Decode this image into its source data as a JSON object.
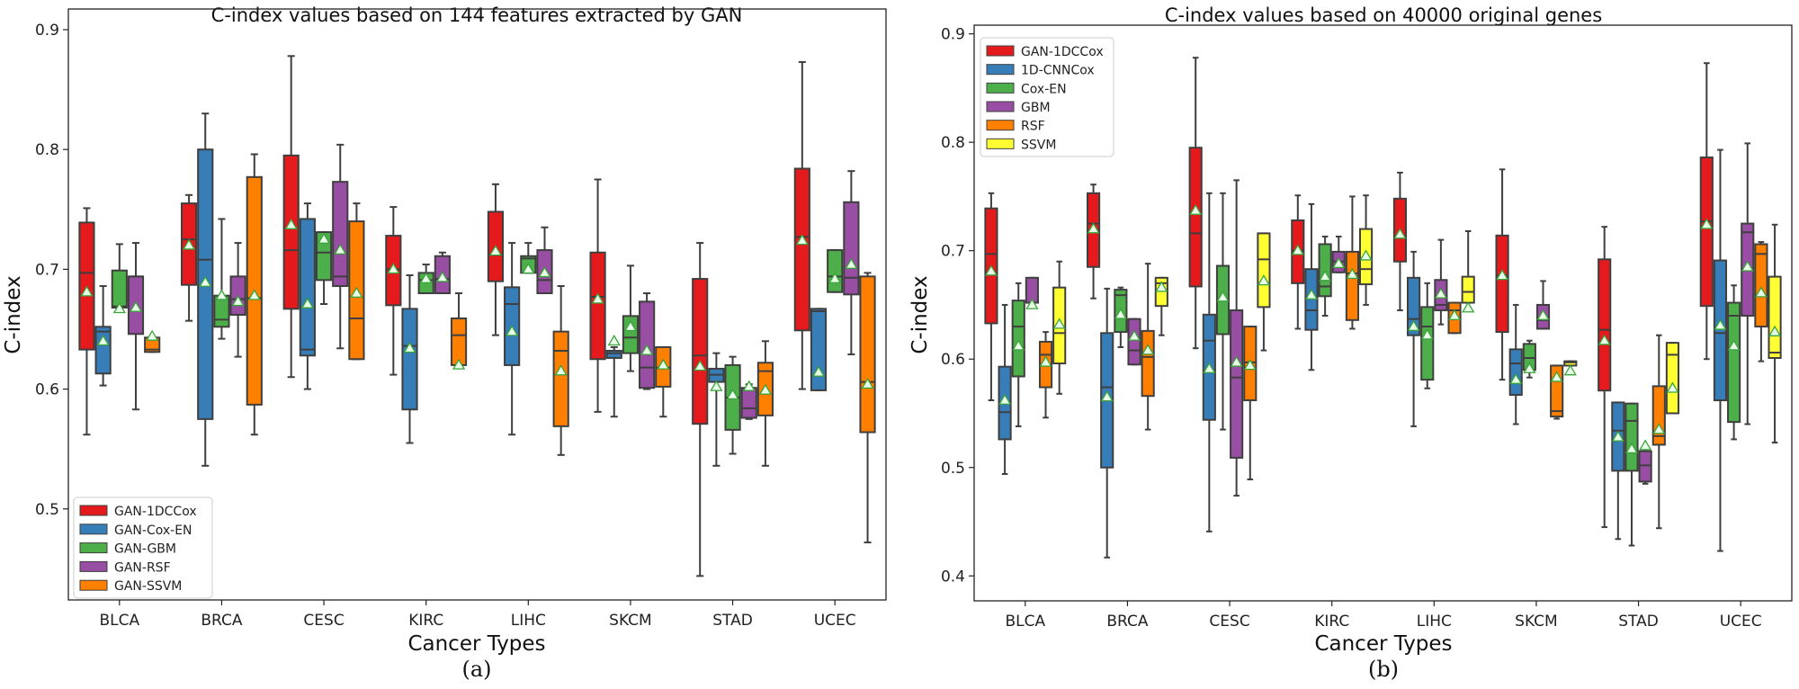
{
  "chart_data": [
    {
      "type": "box",
      "title": "C-index values based on 144 features extracted by GAN",
      "xlabel": "Cancer Types",
      "ylabel": "C-index",
      "caption": "(a)",
      "ylim": [
        0.424,
        0.9
      ],
      "yticks": [
        0.5,
        0.6,
        0.7,
        0.8,
        0.9
      ],
      "ytick_labels": [
        "0.5",
        "0.6",
        "0.7",
        "0.8",
        "0.9"
      ],
      "categories": [
        "BLCA",
        "BRCA",
        "CESC",
        "KIRC",
        "LIHC",
        "SKCM",
        "STAD",
        "UCEC"
      ],
      "legend_position": "lower-left",
      "series": [
        {
          "name": "GAN-1DCCox",
          "color": "#e41a1c",
          "boxes": [
            {
              "wl": 0.562,
              "q1": 0.633,
              "med": 0.697,
              "q3": 0.739,
              "wh": 0.751,
              "mean": 0.681
            },
            {
              "wl": 0.657,
              "q1": 0.687,
              "med": 0.725,
              "q3": 0.755,
              "wh": 0.762,
              "mean": 0.72
            },
            {
              "wl": 0.61,
              "q1": 0.667,
              "med": 0.716,
              "q3": 0.795,
              "wh": 0.878,
              "mean": 0.737
            },
            {
              "wl": 0.612,
              "q1": 0.67,
              "med": 0.7,
              "q3": 0.728,
              "wh": 0.752,
              "mean": 0.7
            },
            {
              "wl": 0.645,
              "q1": 0.69,
              "med": 0.712,
              "q3": 0.748,
              "wh": 0.771,
              "mean": 0.715
            },
            {
              "wl": 0.581,
              "q1": 0.625,
              "med": 0.677,
              "q3": 0.714,
              "wh": 0.775,
              "mean": 0.675
            },
            {
              "wl": 0.444,
              "q1": 0.571,
              "med": 0.628,
              "q3": 0.692,
              "wh": 0.722,
              "mean": 0.619
            },
            {
              "wl": 0.6,
              "q1": 0.649,
              "med": 0.727,
              "q3": 0.784,
              "wh": 0.873,
              "mean": 0.724
            }
          ]
        },
        {
          "name": "GAN-Cox-EN",
          "color": "#377eb8",
          "boxes": [
            {
              "wl": 0.603,
              "q1": 0.613,
              "med": 0.648,
              "q3": 0.652,
              "wh": 0.686,
              "mean": 0.64
            },
            {
              "wl": 0.536,
              "q1": 0.575,
              "med": 0.708,
              "q3": 0.8,
              "wh": 0.83,
              "mean": 0.689
            },
            {
              "wl": 0.6,
              "q1": 0.628,
              "med": 0.633,
              "q3": 0.742,
              "wh": 0.755,
              "mean": 0.671
            },
            {
              "wl": 0.555,
              "q1": 0.583,
              "med": 0.636,
              "q3": 0.667,
              "wh": 0.695,
              "mean": 0.634
            },
            {
              "wl": 0.562,
              "q1": 0.62,
              "med": 0.671,
              "q3": 0.685,
              "wh": 0.722,
              "mean": 0.648
            },
            {
              "wl": 0.577,
              "q1": 0.626,
              "med": 0.63,
              "q3": 0.632,
              "wh": 0.635,
              "mean": 0.64
            },
            {
              "wl": 0.536,
              "q1": 0.606,
              "med": 0.612,
              "q3": 0.617,
              "wh": 0.63,
              "mean": 0.602
            },
            {
              "wl": 0.599,
              "q1": 0.599,
              "med": 0.665,
              "q3": 0.667,
              "wh": 0.667,
              "mean": 0.614
            }
          ]
        },
        {
          "name": "GAN-GBM",
          "color": "#4daf4a",
          "boxes": [
            {
              "wl": 0.668,
              "q1": 0.668,
              "med": 0.669,
              "q3": 0.699,
              "wh": 0.721,
              "mean": 0.667
            },
            {
              "wl": 0.642,
              "q1": 0.652,
              "med": 0.658,
              "q3": 0.678,
              "wh": 0.742,
              "mean": 0.678
            },
            {
              "wl": 0.671,
              "q1": 0.691,
              "med": 0.714,
              "q3": 0.731,
              "wh": 0.731,
              "mean": 0.725
            },
            {
              "wl": 0.68,
              "q1": 0.68,
              "med": 0.691,
              "q3": 0.697,
              "wh": 0.704,
              "mean": 0.692
            },
            {
              "wl": 0.697,
              "q1": 0.697,
              "med": 0.709,
              "q3": 0.711,
              "wh": 0.722,
              "mean": 0.7
            },
            {
              "wl": 0.615,
              "q1": 0.63,
              "med": 0.643,
              "q3": 0.661,
              "wh": 0.703,
              "mean": 0.652
            },
            {
              "wl": 0.546,
              "q1": 0.566,
              "med": 0.593,
              "q3": 0.62,
              "wh": 0.627,
              "mean": 0.595
            },
            {
              "wl": 0.681,
              "q1": 0.681,
              "med": 0.694,
              "q3": 0.716,
              "wh": 0.716,
              "mean": 0.692
            }
          ]
        },
        {
          "name": "GAN-RSF",
          "color": "#984ea3",
          "boxes": [
            {
              "wl": 0.583,
              "q1": 0.646,
              "med": 0.694,
              "q3": 0.694,
              "wh": 0.722,
              "mean": 0.668
            },
            {
              "wl": 0.627,
              "q1": 0.662,
              "med": 0.675,
              "q3": 0.694,
              "wh": 0.722,
              "mean": 0.673
            },
            {
              "wl": 0.634,
              "q1": 0.686,
              "med": 0.694,
              "q3": 0.773,
              "wh": 0.804,
              "mean": 0.716
            },
            {
              "wl": 0.68,
              "q1": 0.68,
              "med": 0.692,
              "q3": 0.711,
              "wh": 0.714,
              "mean": 0.693
            },
            {
              "wl": 0.68,
              "q1": 0.68,
              "med": 0.691,
              "q3": 0.716,
              "wh": 0.735,
              "mean": 0.697
            },
            {
              "wl": 0.6,
              "q1": 0.601,
              "med": 0.618,
              "q3": 0.673,
              "wh": 0.68,
              "mean": 0.632
            },
            {
              "wl": 0.575,
              "q1": 0.576,
              "med": 0.584,
              "q3": 0.601,
              "wh": 0.604,
              "mean": 0.602
            },
            {
              "wl": 0.629,
              "q1": 0.679,
              "med": 0.693,
              "q3": 0.756,
              "wh": 0.782,
              "mean": 0.704
            }
          ]
        },
        {
          "name": "GAN-SSVM",
          "color": "#ff7f00",
          "boxes": [
            {
              "wl": 0.631,
              "q1": 0.631,
              "med": 0.633,
              "q3": 0.643,
              "wh": 0.643,
              "mean": 0.644
            },
            {
              "wl": 0.562,
              "q1": 0.587,
              "med": 0.676,
              "q3": 0.777,
              "wh": 0.796,
              "mean": 0.678
            },
            {
              "wl": 0.625,
              "q1": 0.625,
              "med": 0.659,
              "q3": 0.74,
              "wh": 0.755,
              "mean": 0.68
            },
            {
              "wl": 0.62,
              "q1": 0.62,
              "med": 0.645,
              "q3": 0.659,
              "wh": 0.68,
              "mean": 0.62
            },
            {
              "wl": 0.545,
              "q1": 0.569,
              "med": 0.632,
              "q3": 0.648,
              "wh": 0.686,
              "mean": 0.615
            },
            {
              "wl": 0.577,
              "q1": 0.602,
              "med": 0.618,
              "q3": 0.635,
              "wh": 0.635,
              "mean": 0.62
            },
            {
              "wl": 0.536,
              "q1": 0.578,
              "med": 0.615,
              "q3": 0.622,
              "wh": 0.64,
              "mean": 0.599
            },
            {
              "wl": 0.472,
              "q1": 0.564,
              "med": 0.606,
              "q3": 0.694,
              "wh": 0.697,
              "mean": 0.604
            }
          ]
        }
      ]
    },
    {
      "type": "box",
      "title": "C-index values based on 40000 original genes",
      "xlabel": "Cancer Types",
      "ylabel": "C-index",
      "caption": "(b)",
      "ylim": [
        0.377,
        0.908
      ],
      "yticks": [
        0.4,
        0.5,
        0.6,
        0.7,
        0.8,
        0.9
      ],
      "ytick_labels": [
        "0.4",
        "0.5",
        "0.6",
        "0.7",
        "0.8",
        "0.9"
      ],
      "categories": [
        "BLCA",
        "BRCA",
        "CESC",
        "KIRC",
        "LIHC",
        "SKCM",
        "STAD",
        "UCEC"
      ],
      "legend_position": "upper-left",
      "series": [
        {
          "name": "GAN-1DCCox",
          "color": "#e41a1c",
          "boxes": [
            {
              "wl": 0.562,
              "q1": 0.633,
              "med": 0.697,
              "q3": 0.739,
              "wh": 0.753,
              "mean": 0.681
            },
            {
              "wl": 0.656,
              "q1": 0.685,
              "med": 0.725,
              "q3": 0.753,
              "wh": 0.761,
              "mean": 0.72
            },
            {
              "wl": 0.61,
              "q1": 0.667,
              "med": 0.716,
              "q3": 0.795,
              "wh": 0.878,
              "mean": 0.737
            },
            {
              "wl": 0.628,
              "q1": 0.67,
              "med": 0.7,
              "q3": 0.728,
              "wh": 0.751,
              "mean": 0.7
            },
            {
              "wl": 0.645,
              "q1": 0.69,
              "med": 0.712,
              "q3": 0.748,
              "wh": 0.772,
              "mean": 0.715
            },
            {
              "wl": 0.581,
              "q1": 0.625,
              "med": 0.677,
              "q3": 0.714,
              "wh": 0.775,
              "mean": 0.677
            },
            {
              "wl": 0.445,
              "q1": 0.571,
              "med": 0.627,
              "q3": 0.692,
              "wh": 0.722,
              "mean": 0.617
            },
            {
              "wl": 0.6,
              "q1": 0.649,
              "med": 0.727,
              "q3": 0.786,
              "wh": 0.873,
              "mean": 0.724
            }
          ]
        },
        {
          "name": "1D-CNNCox",
          "color": "#377eb8",
          "boxes": [
            {
              "wl": 0.494,
              "q1": 0.526,
              "med": 0.551,
              "q3": 0.593,
              "wh": 0.65,
              "mean": 0.562
            },
            {
              "wl": 0.417,
              "q1": 0.5,
              "med": 0.574,
              "q3": 0.624,
              "wh": 0.665,
              "mean": 0.565
            },
            {
              "wl": 0.441,
              "q1": 0.544,
              "med": 0.617,
              "q3": 0.641,
              "wh": 0.753,
              "mean": 0.591
            },
            {
              "wl": 0.59,
              "q1": 0.627,
              "med": 0.645,
              "q3": 0.683,
              "wh": 0.743,
              "mean": 0.659
            },
            {
              "wl": 0.538,
              "q1": 0.622,
              "med": 0.637,
              "q3": 0.675,
              "wh": 0.699,
              "mean": 0.63
            },
            {
              "wl": 0.54,
              "q1": 0.567,
              "med": 0.596,
              "q3": 0.609,
              "wh": 0.65,
              "mean": 0.581
            },
            {
              "wl": 0.434,
              "q1": 0.497,
              "med": 0.534,
              "q3": 0.56,
              "wh": 0.56,
              "mean": 0.528
            },
            {
              "wl": 0.423,
              "q1": 0.562,
              "med": 0.624,
              "q3": 0.691,
              "wh": 0.793,
              "mean": 0.631
            }
          ]
        },
        {
          "name": "Cox-EN",
          "color": "#4daf4a",
          "boxes": [
            {
              "wl": 0.538,
              "q1": 0.584,
              "med": 0.63,
              "q3": 0.654,
              "wh": 0.67,
              "mean": 0.612
            },
            {
              "wl": 0.611,
              "q1": 0.625,
              "med": 0.659,
              "q3": 0.664,
              "wh": 0.666,
              "mean": 0.641
            },
            {
              "wl": 0.535,
              "q1": 0.623,
              "med": 0.686,
              "q3": 0.686,
              "wh": 0.753,
              "mean": 0.657
            },
            {
              "wl": 0.64,
              "q1": 0.658,
              "med": 0.667,
              "q3": 0.706,
              "wh": 0.713,
              "mean": 0.676
            },
            {
              "wl": 0.573,
              "q1": 0.581,
              "med": 0.63,
              "q3": 0.648,
              "wh": 0.67,
              "mean": 0.622
            },
            {
              "wl": 0.583,
              "q1": 0.59,
              "med": 0.601,
              "q3": 0.614,
              "wh": 0.617,
              "mean": 0.591
            },
            {
              "wl": 0.428,
              "q1": 0.497,
              "med": 0.543,
              "q3": 0.559,
              "wh": 0.559,
              "mean": 0.517
            },
            {
              "wl": 0.526,
              "q1": 0.542,
              "med": 0.64,
              "q3": 0.652,
              "wh": 0.668,
              "mean": 0.612
            }
          ]
        },
        {
          "name": "GBM",
          "color": "#984ea3",
          "boxes": [
            {
              "wl": 0.652,
              "q1": 0.652,
              "med": 0.652,
              "q3": 0.675,
              "wh": 0.675,
              "mean": 0.65
            },
            {
              "wl": 0.595,
              "q1": 0.595,
              "med": 0.608,
              "q3": 0.637,
              "wh": 0.637,
              "mean": 0.621
            },
            {
              "wl": 0.474,
              "q1": 0.509,
              "med": 0.583,
              "q3": 0.645,
              "wh": 0.765,
              "mean": 0.597
            },
            {
              "wl": 0.68,
              "q1": 0.68,
              "med": 0.69,
              "q3": 0.699,
              "wh": 0.713,
              "mean": 0.688
            },
            {
              "wl": 0.632,
              "q1": 0.645,
              "med": 0.65,
              "q3": 0.673,
              "wh": 0.71,
              "mean": 0.66
            },
            {
              "wl": 0.628,
              "q1": 0.628,
              "med": 0.636,
              "q3": 0.65,
              "wh": 0.672,
              "mean": 0.64
            },
            {
              "wl": 0.485,
              "q1": 0.487,
              "med": 0.502,
              "q3": 0.515,
              "wh": 0.515,
              "mean": 0.52
            },
            {
              "wl": 0.54,
              "q1": 0.64,
              "med": 0.717,
              "q3": 0.725,
              "wh": 0.799,
              "mean": 0.685
            }
          ]
        },
        {
          "name": "RSF",
          "color": "#ff7f00",
          "boxes": [
            {
              "wl": 0.546,
              "q1": 0.574,
              "med": 0.604,
              "q3": 0.616,
              "wh": 0.625,
              "mean": 0.597
            },
            {
              "wl": 0.535,
              "q1": 0.566,
              "med": 0.602,
              "q3": 0.626,
              "wh": 0.688,
              "mean": 0.608
            },
            {
              "wl": 0.489,
              "q1": 0.562,
              "med": 0.597,
              "q3": 0.63,
              "wh": 0.63,
              "mean": 0.594
            },
            {
              "wl": 0.628,
              "q1": 0.636,
              "med": 0.679,
              "q3": 0.699,
              "wh": 0.75,
              "mean": 0.678
            },
            {
              "wl": 0.624,
              "q1": 0.624,
              "med": 0.645,
              "q3": 0.652,
              "wh": 0.652,
              "mean": 0.64
            },
            {
              "wl": 0.545,
              "q1": 0.547,
              "med": 0.552,
              "q3": 0.594,
              "wh": 0.594,
              "mean": 0.583
            },
            {
              "wl": 0.444,
              "q1": 0.521,
              "med": 0.529,
              "q3": 0.575,
              "wh": 0.622,
              "mean": 0.535
            },
            {
              "wl": 0.598,
              "q1": 0.63,
              "med": 0.697,
              "q3": 0.706,
              "wh": 0.708,
              "mean": 0.661
            }
          ]
        },
        {
          "name": "SSVM",
          "color": "#ffff33",
          "boxes": [
            {
              "wl": 0.568,
              "q1": 0.596,
              "med": 0.624,
              "q3": 0.666,
              "wh": 0.69,
              "mean": 0.632
            },
            {
              "wl": 0.622,
              "q1": 0.649,
              "med": 0.67,
              "q3": 0.675,
              "wh": 0.675,
              "mean": 0.666
            },
            {
              "wl": 0.608,
              "q1": 0.648,
              "med": 0.692,
              "q3": 0.716,
              "wh": 0.716,
              "mean": 0.672
            },
            {
              "wl": 0.65,
              "q1": 0.669,
              "med": 0.683,
              "q3": 0.72,
              "wh": 0.751,
              "mean": 0.695
            },
            {
              "wl": 0.652,
              "q1": 0.652,
              "med": 0.662,
              "q3": 0.676,
              "wh": 0.718,
              "mean": 0.647
            },
            {
              "wl": 0.588,
              "q1": 0.594,
              "med": 0.597,
              "q3": 0.598,
              "wh": 0.598,
              "mean": 0.589
            },
            {
              "wl": 0.55,
              "q1": 0.55,
              "med": 0.604,
              "q3": 0.615,
              "wh": 0.615,
              "mean": 0.573
            },
            {
              "wl": 0.523,
              "q1": 0.601,
              "med": 0.606,
              "q3": 0.676,
              "wh": 0.724,
              "mean": 0.625
            }
          ]
        }
      ]
    }
  ]
}
